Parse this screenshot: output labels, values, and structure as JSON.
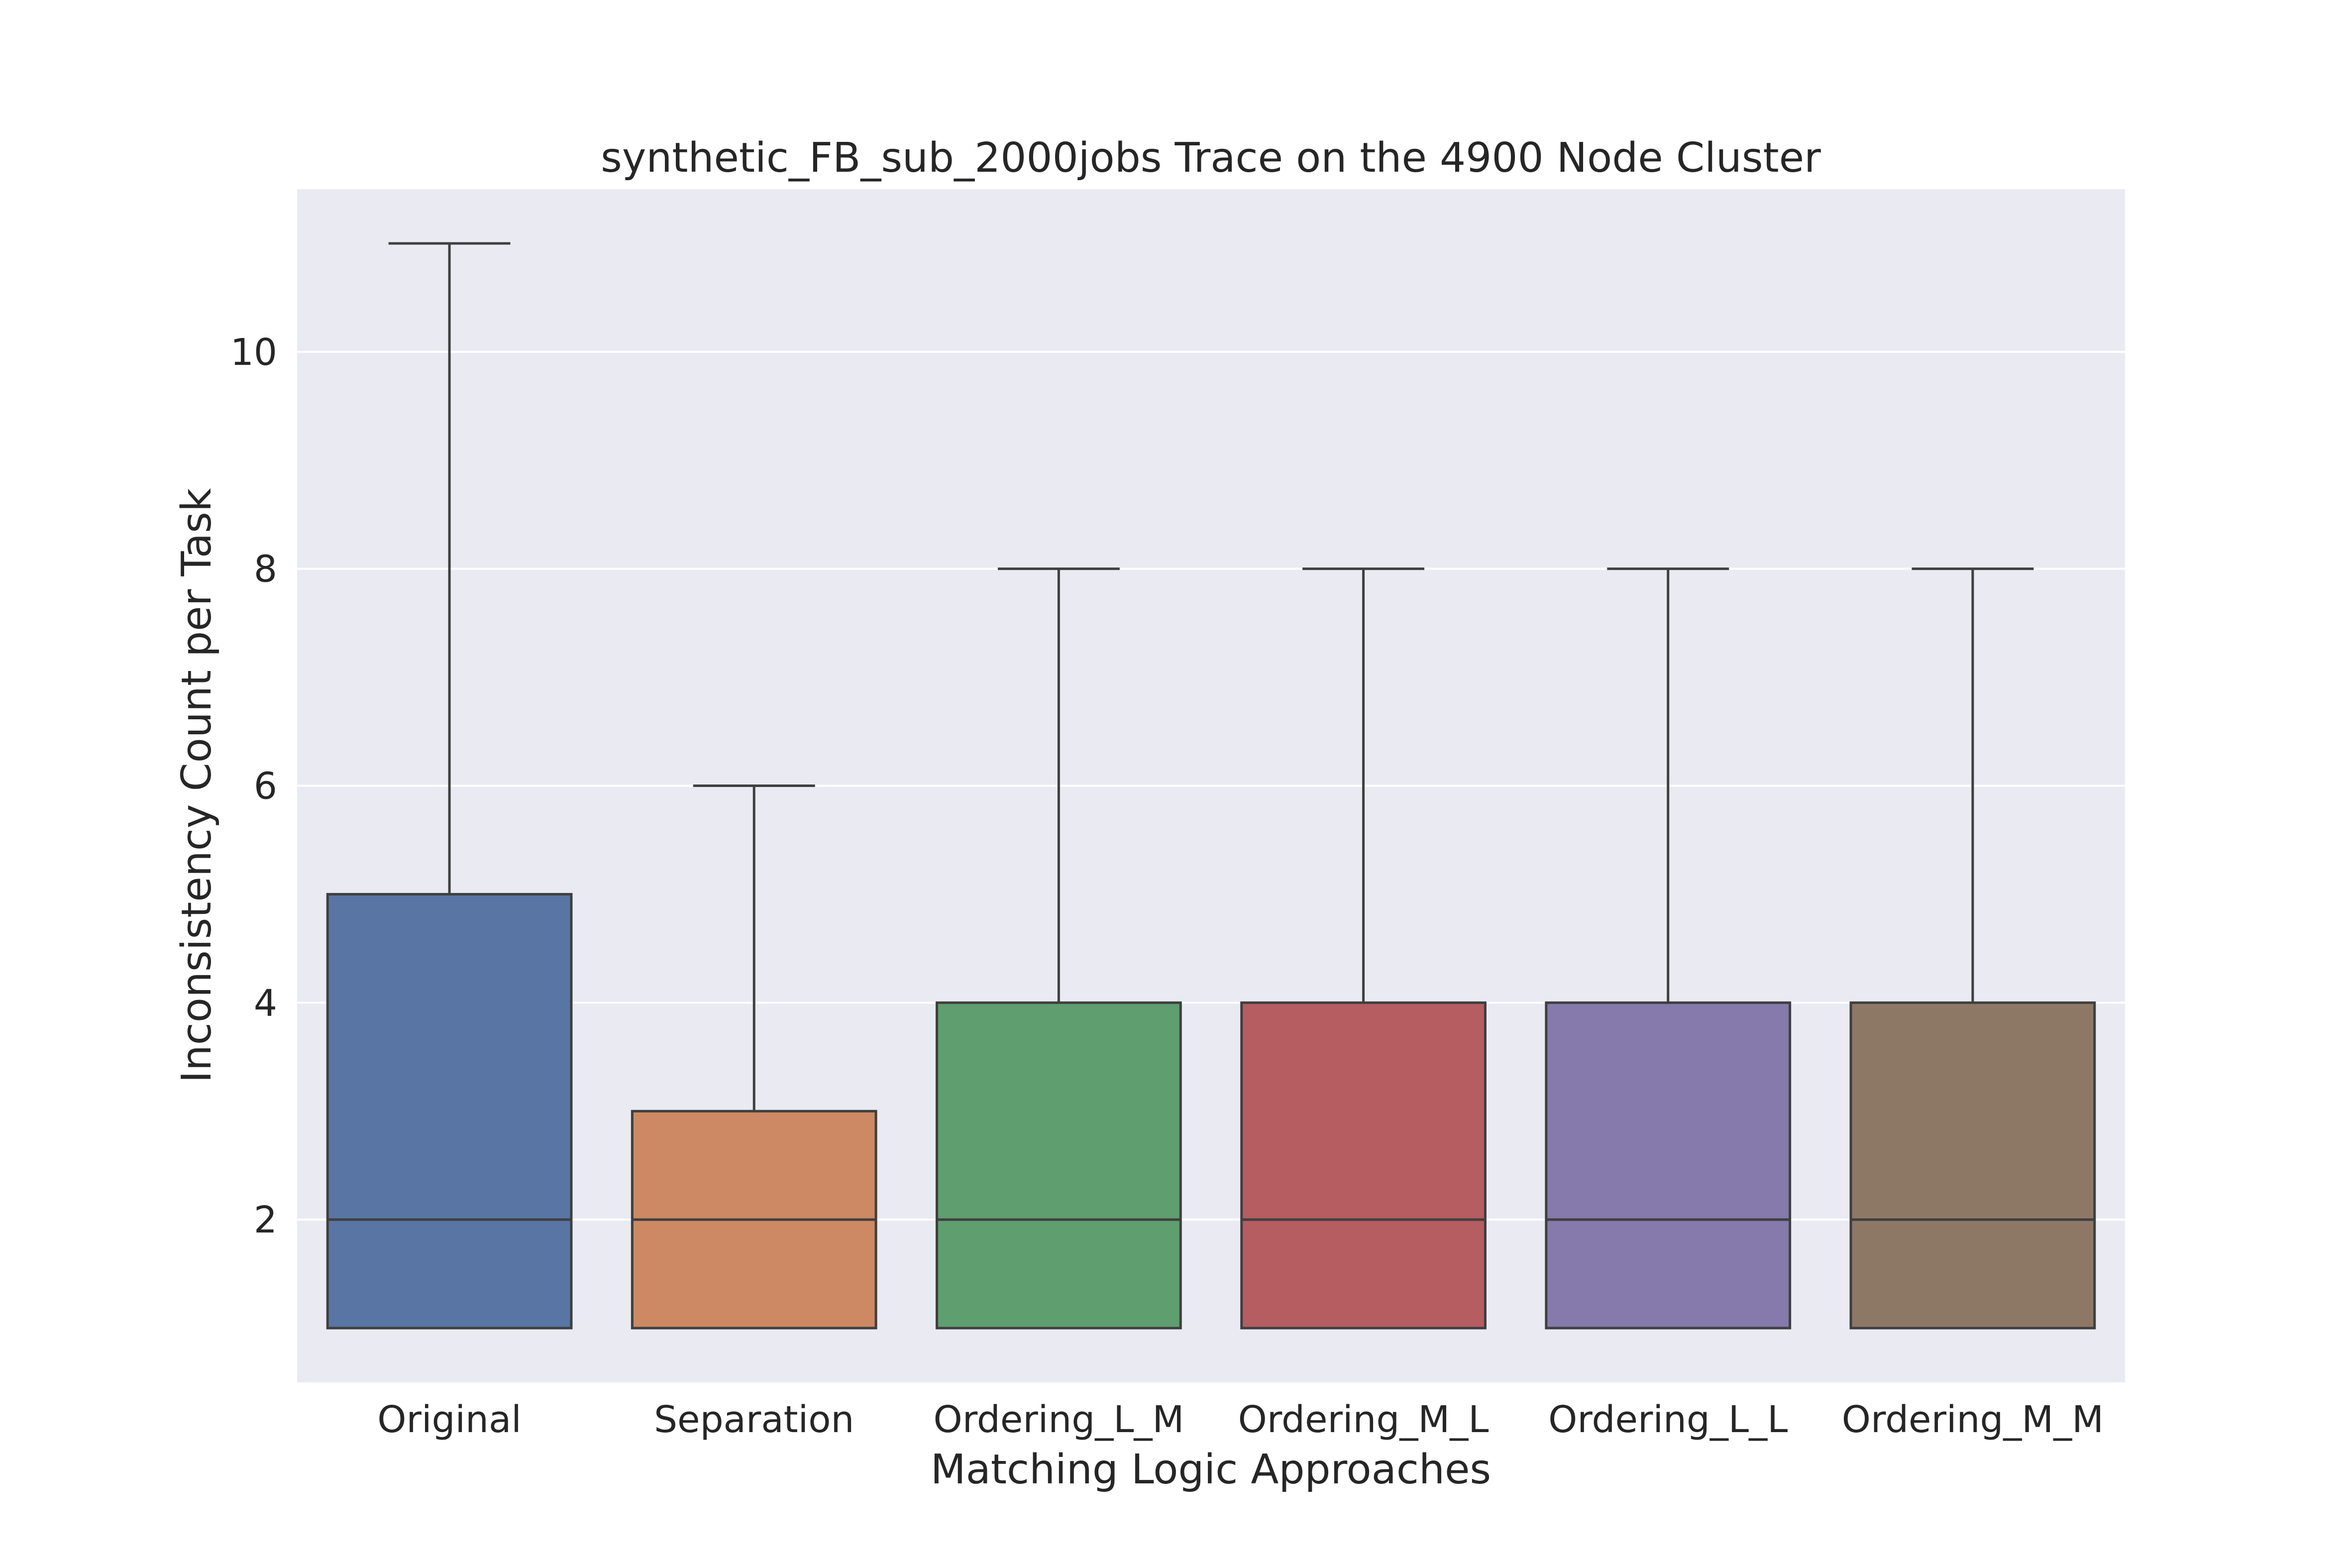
{
  "chart_data": {
    "type": "box",
    "title": "synthetic_FB_sub_2000jobs Trace on the 4900 Node Cluster",
    "xlabel": "Matching Logic Approaches",
    "ylabel": "Inconsistency Count per Task",
    "ylim": [
      0.5,
      11.5
    ],
    "yticks": [
      2,
      4,
      6,
      8,
      10
    ],
    "grid": true,
    "categories": [
      "Original",
      "Separation",
      "Ordering_L_M",
      "Ordering_M_L",
      "Ordering_L_L",
      "Ordering_M_M"
    ],
    "boxes": [
      {
        "category": "Original",
        "whisker_low": 1,
        "q1": 1,
        "median": 2,
        "q3": 5,
        "whisker_high": 11,
        "color": "#5875a4"
      },
      {
        "category": "Separation",
        "whisker_low": 1,
        "q1": 1,
        "median": 2,
        "q3": 3,
        "whisker_high": 6,
        "color": "#cc8963"
      },
      {
        "category": "Ordering_L_M",
        "whisker_low": 1,
        "q1": 1,
        "median": 2,
        "q3": 4,
        "whisker_high": 8,
        "color": "#5f9e6e"
      },
      {
        "category": "Ordering_M_L",
        "whisker_low": 1,
        "q1": 1,
        "median": 2,
        "q3": 4,
        "whisker_high": 8,
        "color": "#b55d60"
      },
      {
        "category": "Ordering_L_L",
        "whisker_low": 1,
        "q1": 1,
        "median": 2,
        "q3": 4,
        "whisker_high": 8,
        "color": "#857aab"
      },
      {
        "category": "Ordering_M_M",
        "whisker_low": 1,
        "q1": 1,
        "median": 2,
        "q3": 4,
        "whisker_high": 8,
        "color": "#8d7866"
      }
    ]
  },
  "colors": {
    "plot_background": "#eaeaf2",
    "grid": "#ffffff",
    "box_edge": "#3f3f3f",
    "text": "#262626"
  }
}
